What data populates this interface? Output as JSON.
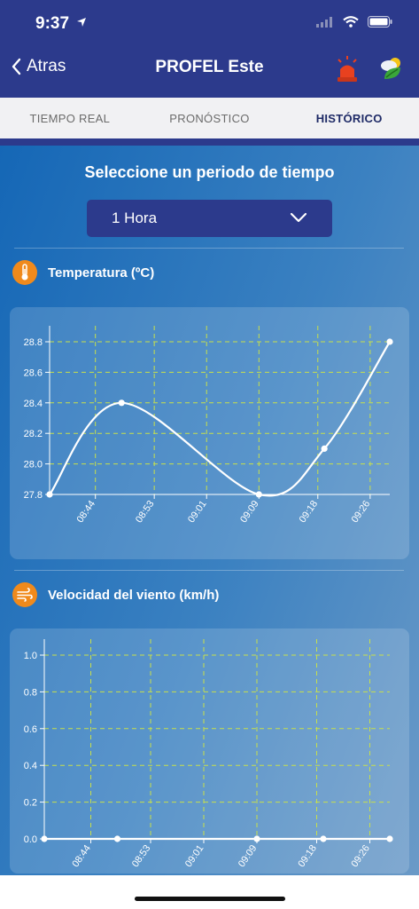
{
  "status_bar": {
    "time": "9:37"
  },
  "nav": {
    "back_label": "Atras",
    "title": "PROFEL Este"
  },
  "tabs": [
    {
      "label": "TIEMPO REAL"
    },
    {
      "label": "PRONÓSTICO"
    },
    {
      "label": "HISTÓRICO"
    }
  ],
  "period": {
    "title": "Seleccione un periodo de tiempo",
    "selected": "1 Hora"
  },
  "temperature": {
    "title": "Temperatura (ºC)"
  },
  "wind": {
    "title": "Velocidad del viento (km/h)"
  },
  "colors": {
    "nav_bg": "#2c3a8c",
    "accent_orange": "#f08a1c",
    "grid": "#c8e04a",
    "alarm_red": "#e8411f"
  },
  "chart_data": [
    {
      "type": "line",
      "title": "Temperatura (ºC)",
      "xlabel": "",
      "ylabel": "",
      "x_ticks": [
        "08:44",
        "08:53",
        "09:01",
        "09:09",
        "09:18",
        "09:26"
      ],
      "y_ticks": [
        "27.8",
        "28.0",
        "28.2",
        "28.4",
        "28.6",
        "28.8"
      ],
      "ylim": [
        27.8,
        28.8
      ],
      "grid": true,
      "series": [
        {
          "points": [
            {
              "x": "08:37",
              "y": 27.8
            },
            {
              "x": "08:48",
              "y": 28.4
            },
            {
              "x": "09:09",
              "y": 27.8
            },
            {
              "x": "09:19",
              "y": 28.1
            },
            {
              "x": "09:29",
              "y": 28.8
            }
          ]
        }
      ]
    },
    {
      "type": "line",
      "title": "Velocidad del viento (km/h)",
      "xlabel": "",
      "ylabel": "",
      "x_ticks": [
        "08:44",
        "08:53",
        "09:01",
        "09:09",
        "09:18",
        "09:26"
      ],
      "y_ticks": [
        "0.0",
        "0.2",
        "0.4",
        "0.6",
        "0.8",
        "1.0"
      ],
      "ylim": [
        0,
        1
      ],
      "grid": true,
      "series": [
        {
          "points": [
            {
              "x": "08:37",
              "y": 0
            },
            {
              "x": "08:48",
              "y": 0
            },
            {
              "x": "09:09",
              "y": 0
            },
            {
              "x": "09:19",
              "y": 0
            },
            {
              "x": "09:29",
              "y": 0
            }
          ]
        }
      ]
    }
  ]
}
